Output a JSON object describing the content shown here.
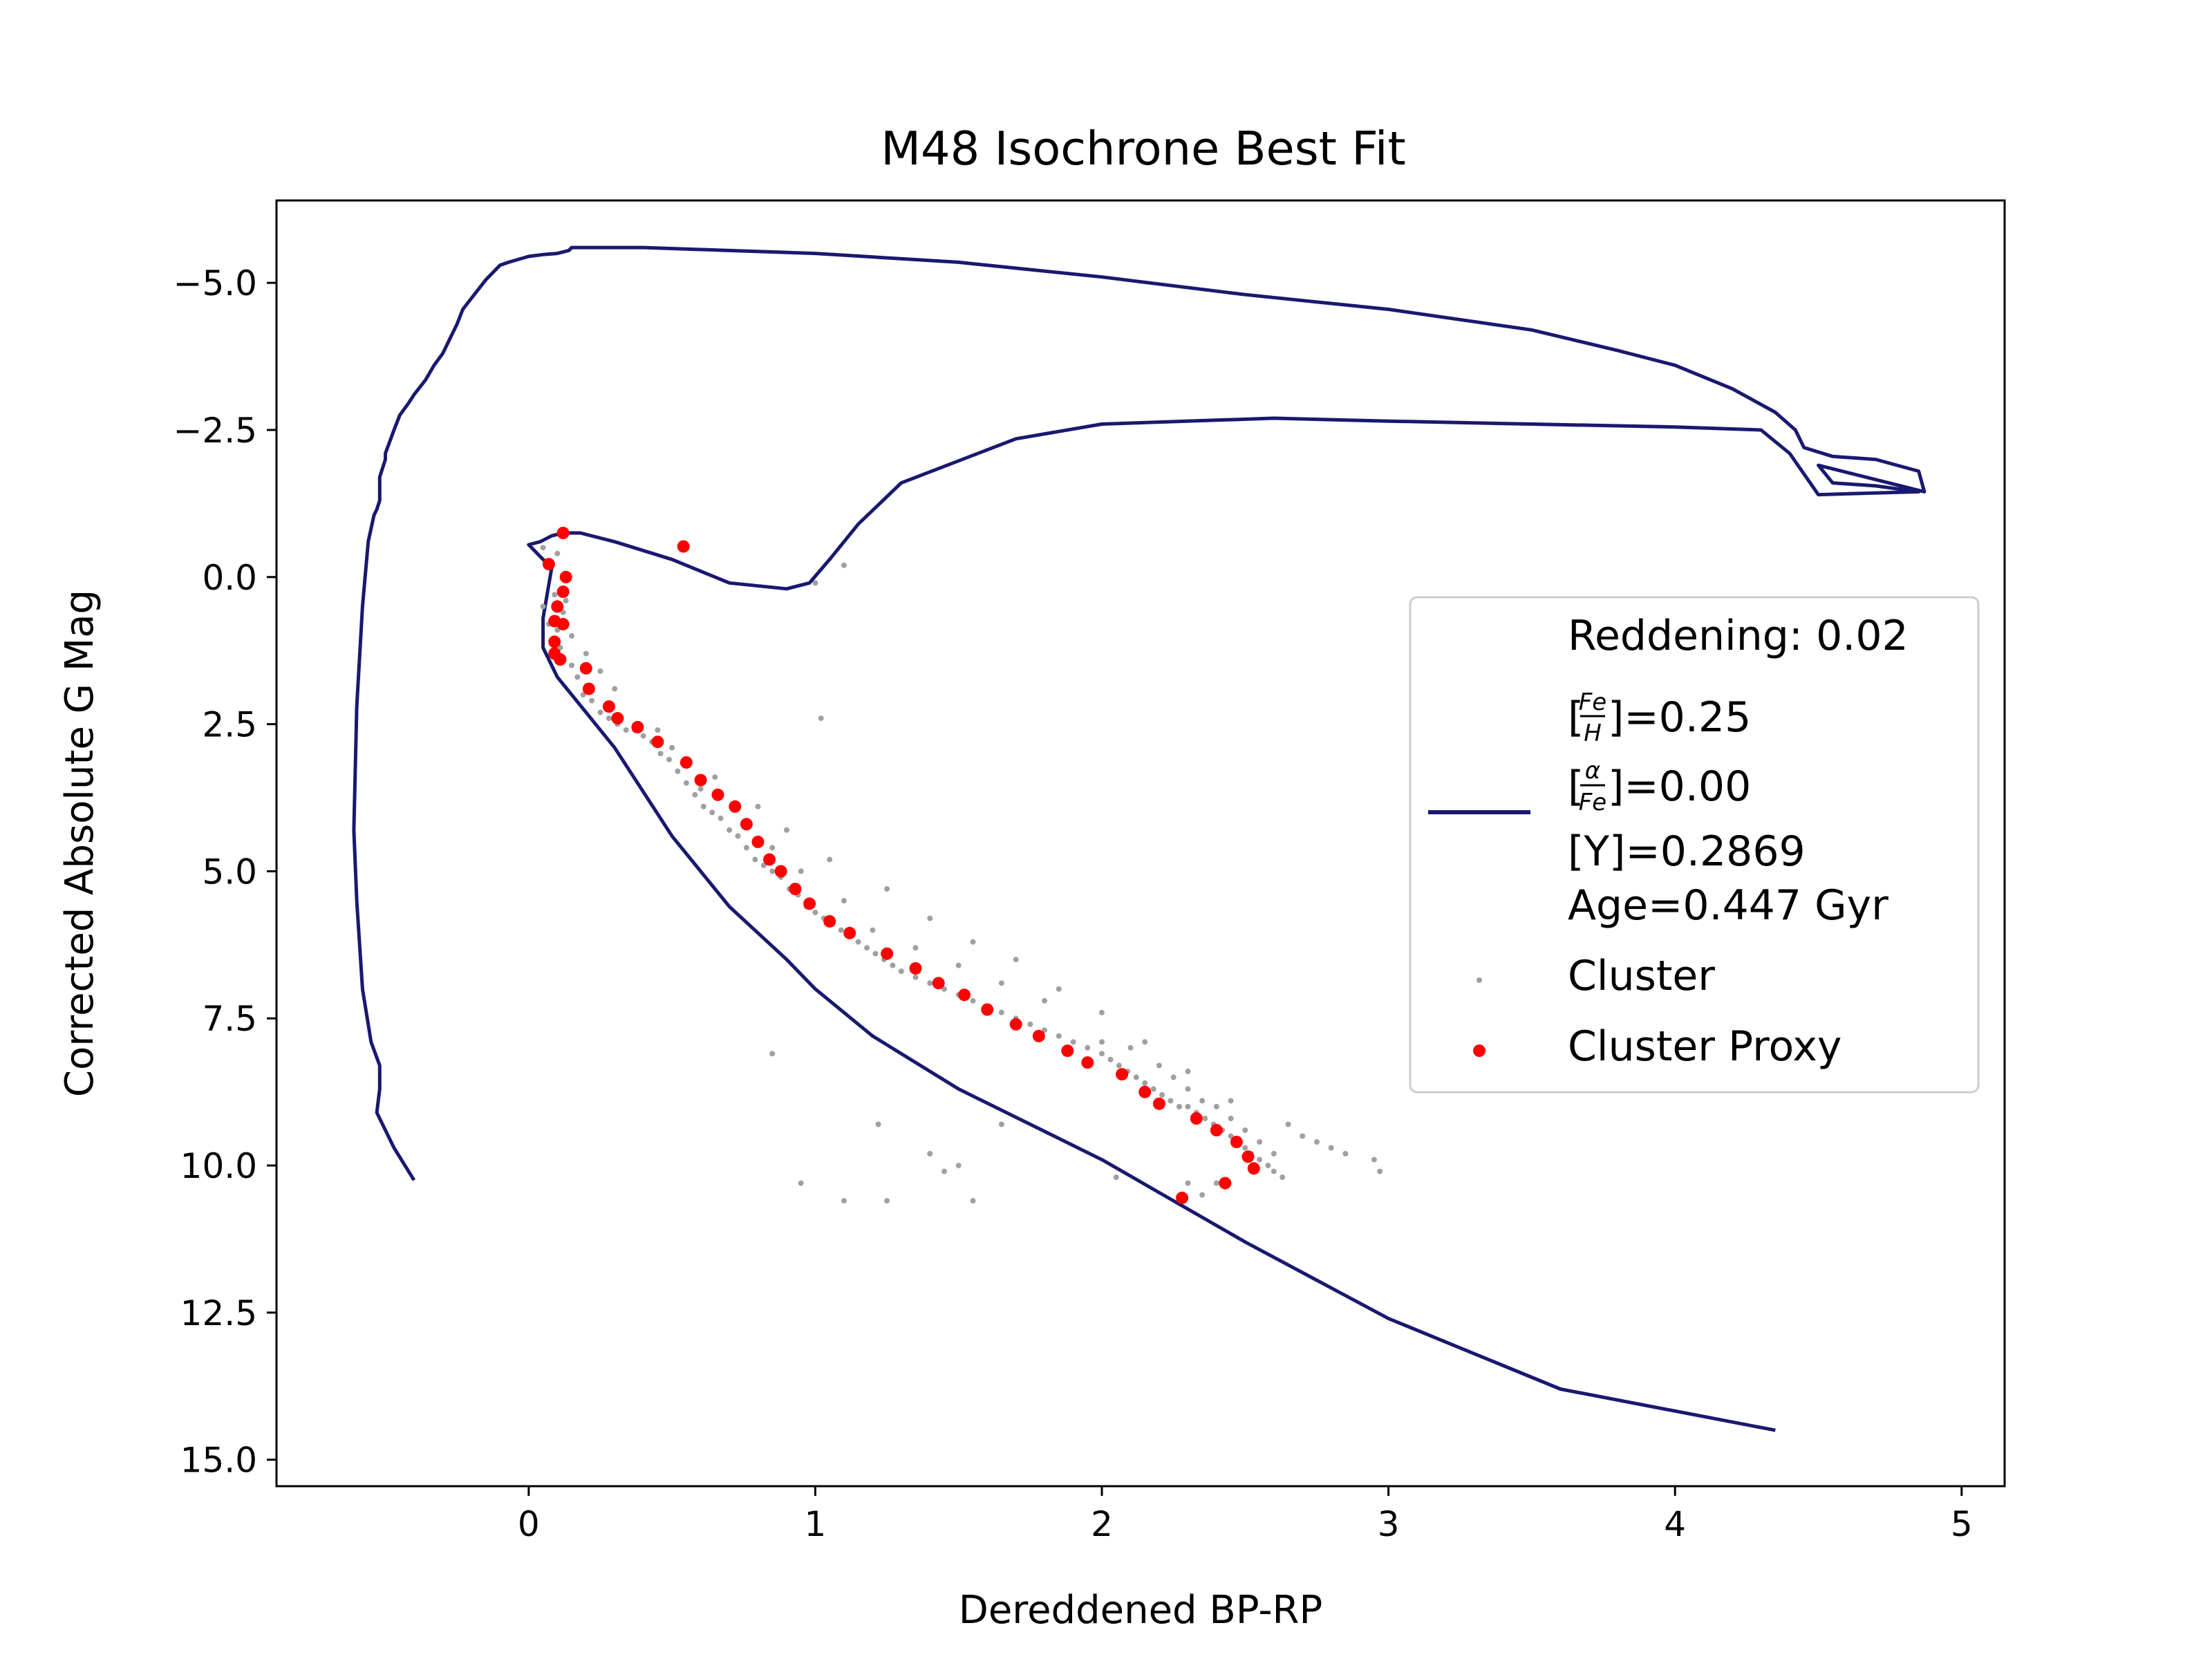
{
  "chart_data": {
    "type": "scatter",
    "title": "M48 Isochrone Best Fit",
    "xlabel": "Dereddened BP-RP",
    "ylabel": "Corrected Absolute G Mag",
    "xlim": [
      -0.88,
      5.15
    ],
    "ylim": [
      15.45,
      -6.4
    ],
    "y_inverted": true,
    "grid": false,
    "xticks": [
      0,
      1,
      2,
      3,
      4,
      5
    ],
    "xtick_labels": [
      "0",
      "1",
      "2",
      "3",
      "4",
      "5"
    ],
    "yticks": [
      -5.0,
      -2.5,
      0.0,
      2.5,
      5.0,
      7.5,
      10.0,
      12.5,
      15.0
    ],
    "ytick_labels": [
      "−5.0",
      "−2.5",
      "0.0",
      "2.5",
      "5.0",
      "7.5",
      "10.0",
      "12.5",
      "15.0"
    ],
    "legend": {
      "position": "center-right",
      "reddening": "Reddening: 0.02",
      "feh": {
        "num": "Fe",
        "den": "H",
        "value": "]=0.25"
      },
      "afe": {
        "num": "α",
        "den": "Fe",
        "value": "]=0.00"
      },
      "y_line": "[Y]=0.2869",
      "age_line": "Age=0.447 Gyr",
      "cluster": "Cluster",
      "proxy": "Cluster Proxy"
    },
    "series": [
      {
        "name": "Isochrone",
        "kind": "line",
        "color": "#191970",
        "x": [
          -0.4,
          -0.47,
          -0.53,
          -0.52,
          -0.52,
          -0.55,
          -0.58,
          -0.6,
          -0.61,
          -0.6,
          -0.58,
          -0.56,
          -0.54,
          -0.53,
          -0.52,
          -0.52,
          -0.5,
          -0.5,
          -0.47,
          -0.45,
          -0.42,
          -0.4,
          -0.36,
          -0.33,
          -0.3,
          -0.27,
          -0.25,
          -0.23,
          -0.15,
          -0.1,
          -0.07,
          0,
          0.05,
          0.1,
          0.14,
          0.15,
          0.4,
          0.7,
          1.0,
          1.5,
          2.0,
          2.5,
          3.0,
          3.5,
          3.8,
          4.0,
          4.2,
          4.35,
          4.42,
          4.45,
          4.55,
          4.7,
          4.85,
          4.87,
          4.5,
          4.55,
          4.7,
          4.85,
          4.5,
          4.4,
          4.3,
          4.0,
          3.5,
          3.0,
          2.6,
          2.0,
          1.7,
          1.3,
          1.15,
          1.05,
          0.98,
          0.9,
          0.7,
          0.5,
          0.3,
          0.18,
          0.12,
          0.08,
          0.04,
          0.0,
          0.08,
          0.05,
          0.05,
          0.1,
          0.2,
          0.3,
          0.5,
          0.7,
          0.9,
          1.0,
          1.2,
          1.5,
          2.0,
          2.5,
          3.0,
          3.6,
          4.35
        ],
        "y": [
          10.25,
          9.7,
          9.1,
          8.7,
          8.3,
          7.9,
          7.0,
          5.5,
          4.3,
          2.2,
          0.5,
          -0.6,
          -1.05,
          -1.15,
          -1.3,
          -1.7,
          -2.0,
          -2.1,
          -2.5,
          -2.75,
          -2.95,
          -3.1,
          -3.35,
          -3.6,
          -3.8,
          -4.1,
          -4.3,
          -4.55,
          -5.05,
          -5.3,
          -5.35,
          -5.45,
          -5.48,
          -5.5,
          -5.55,
          -5.6,
          -5.6,
          -5.55,
          -5.5,
          -5.35,
          -5.1,
          -4.8,
          -4.55,
          -4.2,
          -3.85,
          -3.6,
          -3.2,
          -2.8,
          -2.5,
          -2.2,
          -2.05,
          -2.0,
          -1.8,
          -1.45,
          -1.9,
          -1.6,
          -1.55,
          -1.45,
          -1.4,
          -2.1,
          -2.5,
          -2.55,
          -2.6,
          -2.65,
          -2.7,
          -2.6,
          -2.35,
          -1.6,
          -0.9,
          -0.3,
          0.1,
          0.2,
          0.1,
          -0.3,
          -0.6,
          -0.75,
          -0.75,
          -0.7,
          -0.6,
          -0.55,
          -0.15,
          0.7,
          1.2,
          1.7,
          2.3,
          2.9,
          4.4,
          5.6,
          6.5,
          7.0,
          7.8,
          8.7,
          9.9,
          11.3,
          12.6,
          13.8,
          14.5
        ]
      },
      {
        "name": "Cluster",
        "kind": "scatter",
        "color": "#a0a0a0",
        "x": [
          0.05,
          0.07,
          0.08,
          0.09,
          0.1,
          0.11,
          0.12,
          0.13,
          0.15,
          0.17,
          0.19,
          0.22,
          0.25,
          0.28,
          0.31,
          0.34,
          0.37,
          0.4,
          0.43,
          0.46,
          0.49,
          0.52,
          0.55,
          0.58,
          0.61,
          0.64,
          0.67,
          0.7,
          0.73,
          0.76,
          0.79,
          0.82,
          0.85,
          0.88,
          0.91,
          0.94,
          0.97,
          1.0,
          1.03,
          1.06,
          1.09,
          1.12,
          1.15,
          1.18,
          1.21,
          1.24,
          1.27,
          1.3,
          1.35,
          1.4,
          1.45,
          1.5,
          1.55,
          1.6,
          1.65,
          1.7,
          1.75,
          1.8,
          1.85,
          1.9,
          1.95,
          2.0,
          2.03,
          2.06,
          2.09,
          2.12,
          2.15,
          2.18,
          2.21,
          2.24,
          2.27,
          2.3,
          2.33,
          2.36,
          2.39,
          2.42,
          2.45,
          2.48,
          2.5,
          2.52,
          2.55,
          2.58,
          2.6,
          2.63,
          2.65,
          2.7,
          2.75,
          2.8,
          2.85,
          2.95,
          2.97,
          2.1,
          2.2,
          2.25,
          2.3,
          2.35,
          2.4,
          2.45,
          2.5,
          2.55,
          2.6,
          0.3,
          0.45,
          0.6,
          0.75,
          0.85,
          0.95,
          1.1,
          1.2,
          1.35,
          1.5,
          1.65,
          1.8,
          0.2,
          0.25,
          0.5,
          0.65,
          0.8,
          0.9,
          1.05,
          1.25,
          1.4,
          1.55,
          1.7,
          1.85,
          2.0,
          2.15,
          2.3,
          2.45,
          0.95,
          1.1,
          1.22,
          1.25,
          1.4,
          1.45,
          1.5,
          1.55,
          1.65,
          0.85,
          1.1,
          1.0,
          1.02,
          2.0,
          2.05,
          2.3,
          2.35,
          2.4,
          0.1,
          0.15,
          0.1,
          0.05
        ],
        "y": [
          0.5,
          0.8,
          1.1,
          0.3,
          0.9,
          1.2,
          0.6,
          0.4,
          1.5,
          1.7,
          2.0,
          2.1,
          2.3,
          2.4,
          2.5,
          2.6,
          2.6,
          2.7,
          2.8,
          3.0,
          3.1,
          3.3,
          3.5,
          3.7,
          3.9,
          4.0,
          4.1,
          4.3,
          4.4,
          4.6,
          4.8,
          4.9,
          5.0,
          5.1,
          5.3,
          5.4,
          5.6,
          5.7,
          5.8,
          5.9,
          6.0,
          6.1,
          6.2,
          6.3,
          6.4,
          6.5,
          6.6,
          6.7,
          6.8,
          6.9,
          7.0,
          7.1,
          7.2,
          7.3,
          7.4,
          7.5,
          7.6,
          7.7,
          7.8,
          7.9,
          8.0,
          8.1,
          8.2,
          8.3,
          8.4,
          8.5,
          8.6,
          8.7,
          8.8,
          8.9,
          9.0,
          9.0,
          9.1,
          9.2,
          9.3,
          9.4,
          9.5,
          9.6,
          9.7,
          9.8,
          9.9,
          10.0,
          10.1,
          10.2,
          9.3,
          9.5,
          9.6,
          9.7,
          9.8,
          9.9,
          10.1,
          8.0,
          8.3,
          8.5,
          8.7,
          8.9,
          9.0,
          9.2,
          9.4,
          9.6,
          9.8,
          1.9,
          2.6,
          3.6,
          4.2,
          4.6,
          5.0,
          5.5,
          6.0,
          6.3,
          6.6,
          6.9,
          7.2,
          1.3,
          1.6,
          2.9,
          3.4,
          3.9,
          4.3,
          4.8,
          5.3,
          5.8,
          6.2,
          6.5,
          7.0,
          7.4,
          7.9,
          8.4,
          8.9,
          10.3,
          10.6,
          9.3,
          10.6,
          9.8,
          10.1,
          10.0,
          10.6,
          9.3,
          8.1,
          -0.2,
          0.1,
          2.4,
          7.9,
          10.2,
          10.3,
          10.5,
          10.3,
          0.7,
          1.0,
          -0.4,
          -0.5
        ]
      },
      {
        "name": "Cluster Proxy",
        "kind": "scatter",
        "color": "#ff0000",
        "x": [
          0.12,
          0.07,
          0.13,
          0.12,
          0.1,
          0.09,
          0.12,
          0.09,
          0.09,
          0.11,
          0.2,
          0.21,
          0.28,
          0.31,
          0.38,
          0.45,
          0.55,
          0.6,
          0.66,
          0.72,
          0.76,
          0.8,
          0.84,
          0.88,
          0.93,
          0.98,
          1.05,
          1.12,
          1.25,
          1.35,
          1.43,
          1.52,
          1.6,
          1.7,
          1.78,
          1.88,
          1.95,
          2.07,
          2.15,
          2.2,
          2.33,
          2.4,
          2.47,
          2.51,
          2.53,
          2.43,
          2.28,
          0.54
        ],
        "y": [
          -0.75,
          -0.22,
          0.0,
          0.25,
          0.5,
          0.75,
          0.8,
          1.1,
          1.3,
          1.4,
          1.55,
          1.9,
          2.2,
          2.4,
          2.55,
          2.8,
          3.15,
          3.45,
          3.7,
          3.9,
          4.2,
          4.5,
          4.8,
          5.0,
          5.3,
          5.55,
          5.85,
          6.05,
          6.4,
          6.65,
          6.9,
          7.1,
          7.35,
          7.6,
          7.8,
          8.05,
          8.25,
          8.45,
          8.75,
          8.95,
          9.2,
          9.4,
          9.6,
          9.85,
          10.05,
          10.3,
          10.55,
          -0.52
        ]
      }
    ]
  }
}
